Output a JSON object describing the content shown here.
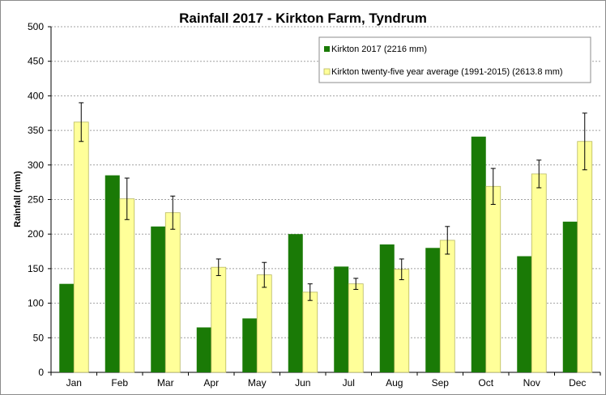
{
  "chart_data": {
    "type": "bar",
    "title": "Rainfall 2017 - Kirkton Farm, Tyndrum",
    "xlabel": "",
    "ylabel": "Rainfall (mm)",
    "ylim": [
      0,
      500
    ],
    "yticks": [
      0,
      50,
      100,
      150,
      200,
      250,
      300,
      350,
      400,
      450,
      500
    ],
    "grid": true,
    "legend_position": "top-right",
    "categories": [
      "Jan",
      "Feb",
      "Mar",
      "Apr",
      "May",
      "Jun",
      "Jul",
      "Aug",
      "Sep",
      "Oct",
      "Nov",
      "Dec"
    ],
    "series": [
      {
        "name": "Kirkton 2017 (2216 mm)",
        "color": "#1a7a06",
        "values": [
          128,
          285,
          211,
          65,
          78,
          200,
          153,
          185,
          180,
          341,
          168,
          218
        ]
      },
      {
        "name": "Kirkton twenty-five year average (1991-2015) (2613.8 mm)",
        "color": "#ffff99",
        "stroke": "#b8b860",
        "values": [
          362,
          251,
          231,
          152,
          141,
          116,
          128,
          149,
          191,
          269,
          287,
          334
        ],
        "error": [
          28,
          30,
          24,
          12,
          18,
          12,
          8,
          15,
          20,
          26,
          20,
          41
        ]
      }
    ]
  }
}
